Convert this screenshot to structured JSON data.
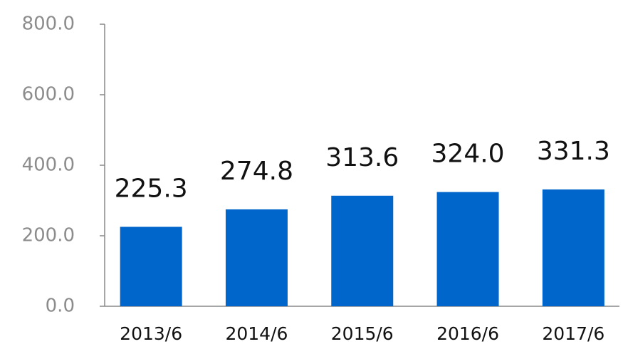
{
  "chart_data": {
    "type": "bar",
    "categories": [
      "2013/6",
      "2014/6",
      "2015/6",
      "2016/6",
      "2017/6"
    ],
    "values": [
      225.3,
      274.8,
      313.6,
      324.0,
      331.3
    ],
    "value_labels": [
      "225.3",
      "274.8",
      "313.6",
      "324.0",
      "331.3"
    ],
    "color": "#0066cc",
    "ylim": [
      0,
      800
    ],
    "yticks": [
      {
        "value": 0,
        "label": "0.0"
      },
      {
        "value": 200,
        "label": "200.0"
      },
      {
        "value": 400,
        "label": "400.0"
      },
      {
        "value": 600,
        "label": "600.0"
      },
      {
        "value": 800,
        "label": "800.0"
      }
    ],
    "grid": false
  }
}
